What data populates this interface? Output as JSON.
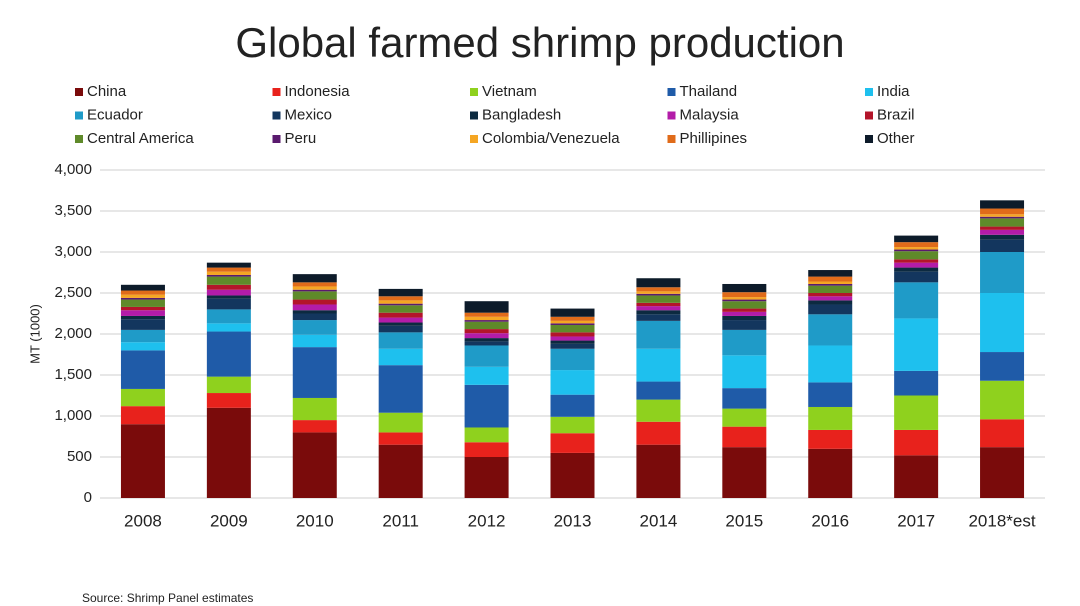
{
  "chart_data": {
    "type": "stacked-bar",
    "title": "Global farmed shrimp production",
    "y_label": "MT (1000)",
    "source": "Source: Shrimp Panel estimates",
    "categories": [
      "2008",
      "2009",
      "2010",
      "2011",
      "2012",
      "2013",
      "2014",
      "2015",
      "2016",
      "2017",
      "2018*est"
    ],
    "ylim": [
      0,
      4000
    ],
    "yticks": [
      0,
      500,
      {
        "value": 1000,
        "label": "1,000"
      },
      {
        "value": 1500,
        "label": "1,500"
      },
      {
        "value": 2000,
        "label": "2,000"
      },
      {
        "value": 2500,
        "label": "2,500"
      },
      {
        "value": 3000,
        "label": "3,000"
      },
      {
        "value": 3500,
        "label": "3,500"
      },
      {
        "value": 4000,
        "label": "4,000"
      }
    ],
    "grid": true,
    "series": [
      {
        "name": "China",
        "color": "#7a0b0b",
        "values": [
          900,
          1100,
          800,
          650,
          500,
          550,
          650,
          620,
          600,
          520,
          620
        ]
      },
      {
        "name": "Indonesia",
        "color": "#e8221c",
        "values": [
          220,
          180,
          150,
          150,
          180,
          240,
          280,
          250,
          230,
          310,
          340
        ]
      },
      {
        "name": "Vietnam",
        "color": "#8fd11e",
        "values": [
          210,
          200,
          270,
          240,
          180,
          200,
          270,
          220,
          280,
          420,
          470
        ]
      },
      {
        "name": "Thailand",
        "color": "#1f5ba8",
        "values": [
          470,
          550,
          620,
          580,
          520,
          270,
          220,
          250,
          300,
          300,
          350
        ]
      },
      {
        "name": "India",
        "color": "#1ec0ee",
        "values": [
          100,
          100,
          150,
          200,
          220,
          300,
          400,
          400,
          450,
          640,
          720
        ]
      },
      {
        "name": "Ecuador",
        "color": "#1f9bc8",
        "values": [
          150,
          170,
          180,
          200,
          260,
          260,
          340,
          310,
          380,
          440,
          500
        ]
      },
      {
        "name": "Mexico",
        "color": "#13365e",
        "values": [
          130,
          130,
          80,
          80,
          50,
          60,
          80,
          120,
          120,
          130,
          150
        ]
      },
      {
        "name": "Bangladesh",
        "color": "#0c2a40",
        "values": [
          40,
          40,
          40,
          40,
          40,
          40,
          50,
          50,
          50,
          50,
          60
        ]
      },
      {
        "name": "Malaysia",
        "color": "#b31ca8",
        "values": [
          70,
          70,
          70,
          60,
          60,
          50,
          50,
          50,
          50,
          60,
          60
        ]
      },
      {
        "name": "Brazil",
        "color": "#b3152a",
        "values": [
          40,
          60,
          60,
          60,
          50,
          50,
          40,
          40,
          40,
          40,
          40
        ]
      },
      {
        "name": "Central America",
        "color": "#5f8a2a",
        "values": [
          90,
          100,
          100,
          90,
          90,
          90,
          90,
          90,
          90,
          100,
          100
        ]
      },
      {
        "name": "Peru",
        "color": "#5a1a6e",
        "values": [
          20,
          20,
          20,
          20,
          20,
          20,
          20,
          20,
          20,
          20,
          20
        ]
      },
      {
        "name": "Colombia/Venezuela",
        "color": "#f5a623",
        "values": [
          40,
          40,
          40,
          40,
          40,
          30,
          30,
          30,
          30,
          30,
          30
        ]
      },
      {
        "name": "Phillipines",
        "color": "#e06b1a",
        "values": [
          50,
          50,
          50,
          50,
          50,
          50,
          50,
          60,
          60,
          60,
          70
        ]
      },
      {
        "name": "Other",
        "color": "#0d1b2a",
        "values": [
          70,
          60,
          100,
          90,
          140,
          100,
          110,
          100,
          80,
          80,
          100
        ]
      }
    ]
  }
}
